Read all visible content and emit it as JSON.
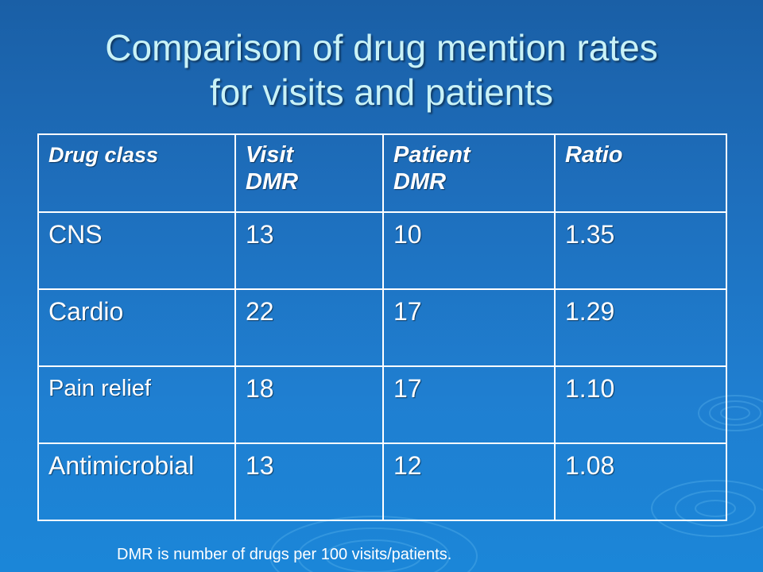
{
  "slide": {
    "title_line1": "Comparison of drug mention rates",
    "title_line2": "for visits and patients"
  },
  "table": {
    "headers": [
      {
        "line1": "Drug class",
        "line2": ""
      },
      {
        "line1": "Visit",
        "line2": "DMR"
      },
      {
        "line1": "Patient",
        "line2": "DMR"
      },
      {
        "line1": "Ratio",
        "line2": ""
      }
    ],
    "rows": [
      [
        "CNS",
        "13",
        "10",
        "1.35"
      ],
      [
        "Cardio",
        "22",
        "17",
        "1.29"
      ],
      [
        "Pain relief",
        "18",
        "17",
        "1.10"
      ],
      [
        "Antimicrobial",
        "13",
        "12",
        "1.08"
      ]
    ]
  },
  "footnote": "DMR is number of drugs per 100 visits/patients.",
  "colors": {
    "background": "#1e6fbd",
    "title": "#c9f2f7",
    "text": "#ffffff",
    "border": "#ffffff"
  }
}
